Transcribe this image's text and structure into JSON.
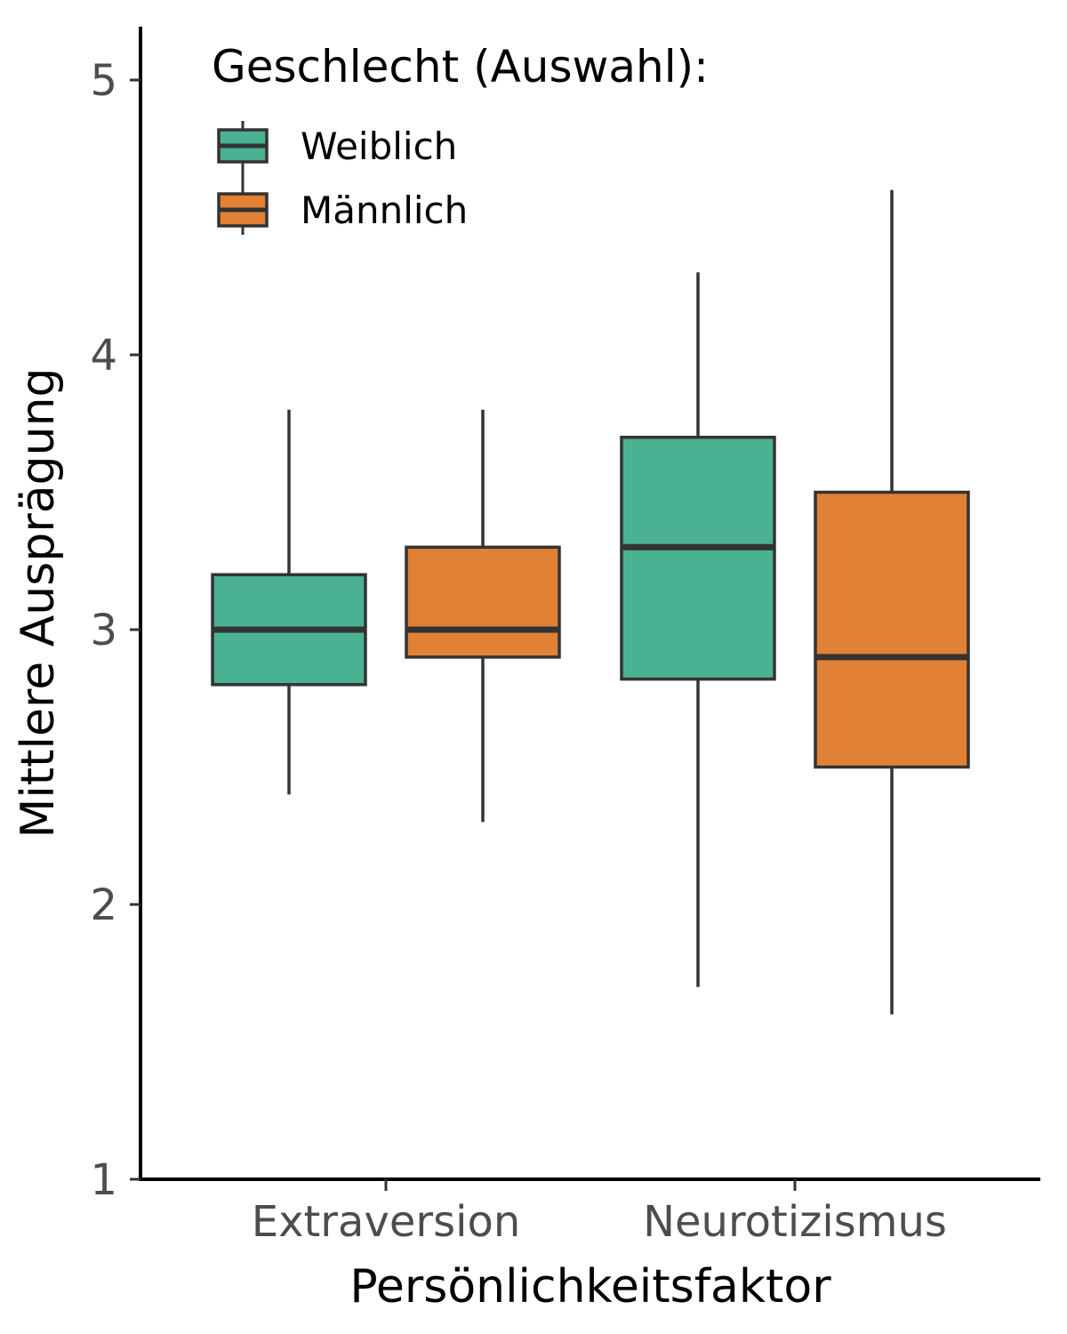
{
  "chart_data": {
    "type": "boxplot",
    "xlabel": "Persönlichkeitsfaktor",
    "ylabel": "Mittlere Ausprägung",
    "ylim": [
      1,
      5.2
    ],
    "yticks": [
      "1",
      "2",
      "3",
      "4",
      "5"
    ],
    "categories": [
      "Extraversion",
      "Neurotizismus"
    ],
    "legend": {
      "title": "Geschlecht (Auswahl):",
      "position": "top-left"
    },
    "grid": false,
    "series": [
      {
        "name": "Weiblich",
        "color": "#4ab193",
        "boxes": [
          {
            "whisker_low": 2.4,
            "q1": 2.8,
            "median": 3.0,
            "q3": 3.2,
            "whisker_high": 3.8
          },
          {
            "whisker_low": 1.7,
            "q1": 2.82,
            "median": 3.3,
            "q3": 3.7,
            "whisker_high": 4.3
          }
        ]
      },
      {
        "name": "Männlich",
        "color": "#e08135",
        "boxes": [
          {
            "whisker_low": 2.3,
            "q1": 2.9,
            "median": 3.0,
            "q3": 3.3,
            "whisker_high": 3.8
          },
          {
            "whisker_low": 1.6,
            "q1": 2.5,
            "median": 2.9,
            "q3": 3.5,
            "whisker_high": 4.6
          }
        ]
      }
    ]
  }
}
